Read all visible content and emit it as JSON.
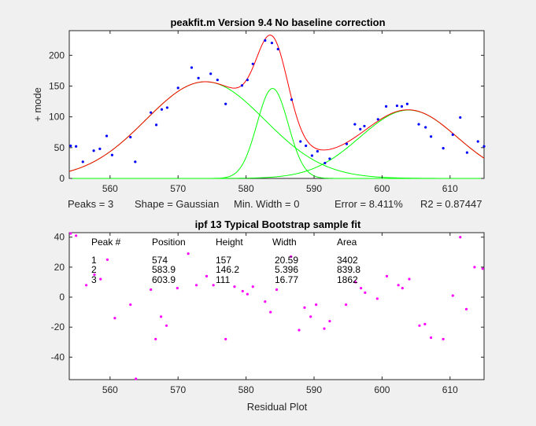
{
  "window": {
    "background": "#f0f0f0"
  },
  "chart_data": [
    {
      "id": "fit",
      "type": "line",
      "title": "peakfit.m Version 9.4   No baseline correction",
      "ylabel": "+ mode",
      "xlim": [
        554,
        615
      ],
      "ylim": [
        0,
        240
      ],
      "x_ticks": [
        560,
        570,
        580,
        590,
        600,
        610
      ],
      "y_ticks": [
        0,
        50,
        100,
        150,
        200
      ],
      "grid": false,
      "x_range": [
        554,
        615
      ],
      "points_color": "#0000ff",
      "fit_color": "#ff0000",
      "component_color": "#00ff00",
      "points": [
        [
          554.2,
          53
        ],
        [
          555,
          52
        ],
        [
          556,
          27
        ],
        [
          557.6,
          45
        ],
        [
          558.5,
          48
        ],
        [
          559.5,
          69
        ],
        [
          560.3,
          38
        ],
        [
          563,
          67
        ],
        [
          563.7,
          27
        ],
        [
          566,
          107
        ],
        [
          566.8,
          87
        ],
        [
          567.6,
          112
        ],
        [
          568.4,
          115
        ],
        [
          570,
          147
        ],
        [
          572,
          180
        ],
        [
          573,
          163
        ],
        [
          574.8,
          170
        ],
        [
          575.8,
          160
        ],
        [
          577,
          121
        ],
        [
          579.4,
          151
        ],
        [
          580.2,
          160
        ],
        [
          581,
          186
        ],
        [
          582.8,
          224
        ],
        [
          583.8,
          220
        ],
        [
          584.7,
          210
        ],
        [
          586.7,
          128
        ],
        [
          588,
          60
        ],
        [
          588.8,
          53
        ],
        [
          589.7,
          37
        ],
        [
          590.5,
          44
        ],
        [
          591.6,
          25
        ],
        [
          592.3,
          32
        ],
        [
          594.8,
          56
        ],
        [
          596,
          88
        ],
        [
          596.8,
          80
        ],
        [
          597.4,
          85
        ],
        [
          599.4,
          96
        ],
        [
          600.6,
          117
        ],
        [
          602.2,
          118
        ],
        [
          602.9,
          117
        ],
        [
          603.7,
          121
        ],
        [
          605.4,
          88
        ],
        [
          606.4,
          83
        ],
        [
          607.2,
          68
        ],
        [
          609,
          49
        ],
        [
          610.4,
          71
        ],
        [
          611.5,
          99
        ],
        [
          612.5,
          42
        ],
        [
          614.1,
          60
        ],
        [
          615,
          52
        ]
      ],
      "peaks": [
        {
          "position": 574,
          "height": 157,
          "width": 20.59
        },
        {
          "position": 583.9,
          "height": 146.2,
          "width": 5.396
        },
        {
          "position": 603.9,
          "height": 111,
          "width": 16.77
        }
      ],
      "stats": {
        "peaks": "Peaks = 3",
        "shape": "Shape = Gaussian",
        "min_width": "Min. Width = 0",
        "error": "Error = 8.411%",
        "r2": "R2 = 0.87447"
      }
    },
    {
      "id": "residual",
      "type": "scatter",
      "title": "ipf 13  Typical Bootstrap sample fit",
      "xlabel": "Residual Plot",
      "xlim": [
        554,
        615
      ],
      "ylim": [
        -55,
        43
      ],
      "x_ticks": [
        560,
        570,
        580,
        590,
        600,
        610
      ],
      "y_ticks": [
        -40,
        -20,
        0,
        20,
        40
      ],
      "grid": false,
      "points_color": "#ff00ff",
      "points": [
        [
          554.2,
          43
        ],
        [
          555,
          41
        ],
        [
          556.5,
          8
        ],
        [
          557.7,
          15
        ],
        [
          558.6,
          12
        ],
        [
          559.6,
          25
        ],
        [
          560.7,
          -14
        ],
        [
          563,
          -5
        ],
        [
          563.8,
          -55
        ],
        [
          566,
          5
        ],
        [
          566.7,
          -28
        ],
        [
          567.5,
          -13
        ],
        [
          568.3,
          -19
        ],
        [
          569.9,
          6
        ],
        [
          571.5,
          29
        ],
        [
          572.7,
          8
        ],
        [
          574.2,
          14
        ],
        [
          575.2,
          8
        ],
        [
          577,
          -28
        ],
        [
          578.3,
          7
        ],
        [
          579.5,
          4
        ],
        [
          580.2,
          2
        ],
        [
          581,
          7
        ],
        [
          582.8,
          -3
        ],
        [
          583.6,
          -10
        ],
        [
          584.5,
          5
        ],
        [
          586.6,
          27
        ],
        [
          587.8,
          -22
        ],
        [
          588.6,
          -7
        ],
        [
          589.5,
          -13
        ],
        [
          590.3,
          -5
        ],
        [
          591.5,
          -21
        ],
        [
          592.3,
          -16
        ],
        [
          594.7,
          -5
        ],
        [
          596.1,
          10
        ],
        [
          596.9,
          6
        ],
        [
          597.5,
          3
        ],
        [
          599.3,
          -1
        ],
        [
          600.7,
          14
        ],
        [
          602.4,
          8
        ],
        [
          603,
          6
        ],
        [
          604,
          12
        ],
        [
          605.5,
          -19
        ],
        [
          606.3,
          -18
        ],
        [
          607.2,
          -27
        ],
        [
          609,
          -28
        ],
        [
          610.4,
          1
        ],
        [
          611.5,
          40
        ],
        [
          612.4,
          -8
        ],
        [
          613.6,
          20
        ],
        [
          614.8,
          19
        ]
      ],
      "table": {
        "headers": [
          "Peak #",
          "Position",
          "Height",
          "Width",
          "Area"
        ],
        "rows": [
          [
            "1",
            "574",
            "157",
            "20.59",
            "3402"
          ],
          [
            "2",
            "583.9",
            "146.2",
            "5.396",
            "839.8"
          ],
          [
            "3",
            "603.9",
            "111",
            "16.77",
            "1862"
          ]
        ]
      }
    }
  ]
}
